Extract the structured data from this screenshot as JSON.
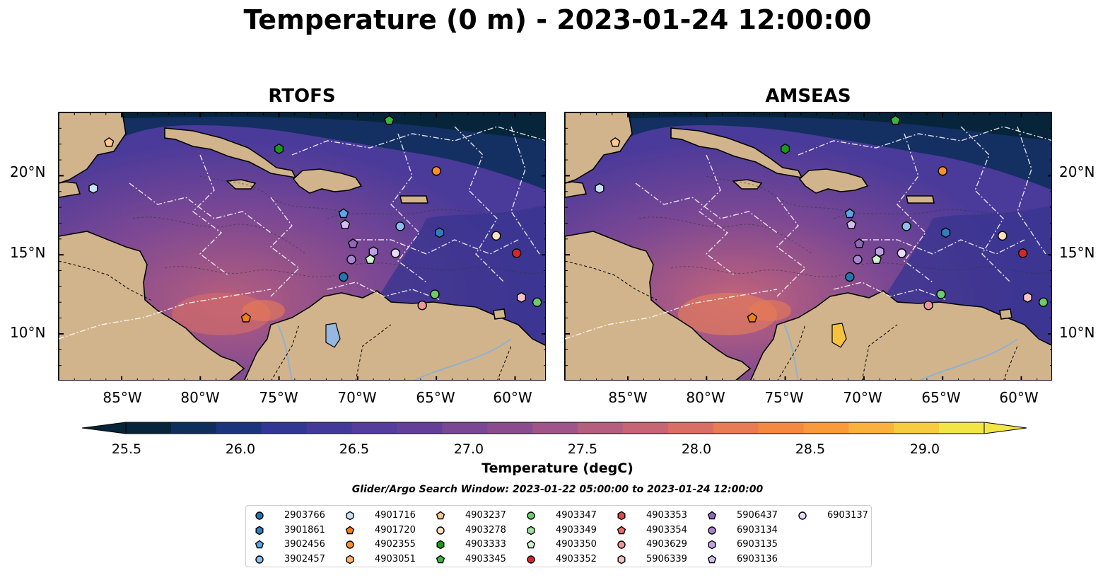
{
  "title": "Temperature (0 m) - 2023-01-24 12:00:00",
  "panels": [
    {
      "title": "RTOFS"
    },
    {
      "title": "AMSEAS"
    }
  ],
  "lat_labels": [
    "20°N",
    "15°N",
    "10°N"
  ],
  "lon_labels": [
    "85°W",
    "80°W",
    "75°W",
    "70°W",
    "65°W",
    "60°W"
  ],
  "colorbar": {
    "title": "Temperature (degC)",
    "ticks": [
      "25.5",
      "26.0",
      "26.5",
      "27.0",
      "27.5",
      "28.0",
      "28.5",
      "29.0"
    ],
    "range": [
      25.5,
      29.25
    ],
    "colors": [
      "#06243a",
      "#0e2f5c",
      "#1b347e",
      "#313795",
      "#433999",
      "#543d9c",
      "#643f9a",
      "#7a4794",
      "#8b4c8e",
      "#a15489",
      "#b55e7d",
      "#c86474",
      "#db6e64",
      "#ea7b54",
      "#f5893f",
      "#fa9a3a",
      "#fbb13b",
      "#f7cc3e",
      "#f2e646"
    ]
  },
  "search_window": "Glider/Argo Search Window: 2023-01-22 05:00:00 to 2023-01-24 12:00:00",
  "legend": [
    {
      "id": "2903766",
      "marker": "circle",
      "color": "#1f77b4"
    },
    {
      "id": "3901861",
      "marker": "hexagon",
      "color": "#2f7fc1"
    },
    {
      "id": "3902456",
      "marker": "pentagon",
      "color": "#5aa8e3"
    },
    {
      "id": "3902457",
      "marker": "circle",
      "color": "#8cc0ec"
    },
    {
      "id": "4901716",
      "marker": "hexagon",
      "color": "#c7e3f7"
    },
    {
      "id": "4901720",
      "marker": "pentagon",
      "color": "#f57f11"
    },
    {
      "id": "4902355",
      "marker": "circle",
      "color": "#ff8f27"
    },
    {
      "id": "4903051",
      "marker": "hexagon",
      "color": "#ffb36b"
    },
    {
      "id": "4903237",
      "marker": "pentagon",
      "color": "#ffc893"
    },
    {
      "id": "4903278",
      "marker": "circle",
      "color": "#ffe1c2"
    },
    {
      "id": "4903333",
      "marker": "hexagon",
      "color": "#1a9a1a"
    },
    {
      "id": "4903345",
      "marker": "pentagon",
      "color": "#3cb53c"
    },
    {
      "id": "4903347",
      "marker": "circle",
      "color": "#6ccc6c"
    },
    {
      "id": "4903349",
      "marker": "hexagon",
      "color": "#9ee09e"
    },
    {
      "id": "4903350",
      "marker": "pentagon",
      "color": "#cdf4cd"
    },
    {
      "id": "4903352",
      "marker": "circle",
      "color": "#d62728"
    },
    {
      "id": "4903353",
      "marker": "hexagon",
      "color": "#e34646"
    },
    {
      "id": "4903354",
      "marker": "pentagon",
      "color": "#ec6b6b"
    },
    {
      "id": "4903629",
      "marker": "circle",
      "color": "#f39595"
    },
    {
      "id": "5906339",
      "marker": "hexagon",
      "color": "#f8c3c3"
    },
    {
      "id": "5906437",
      "marker": "pentagon",
      "color": "#9067bd"
    },
    {
      "id": "6903134",
      "marker": "circle",
      "color": "#a784d1"
    },
    {
      "id": "6903135",
      "marker": "hexagon",
      "color": "#bda1e2"
    },
    {
      "id": "6903136",
      "marker": "pentagon",
      "color": "#d3bef0"
    },
    {
      "id": "6903137",
      "marker": "circle",
      "color": "#e8dcfa"
    }
  ],
  "map_extent": {
    "lon": [
      -89,
      -58
    ],
    "lat": [
      7,
      24
    ]
  },
  "floats_shown": [
    {
      "id": "4903237",
      "lon": -85.8,
      "lat": 22.1
    },
    {
      "id": "4901716",
      "lon": -86.8,
      "lat": 19.2
    },
    {
      "id": "4903333",
      "lon": -75.0,
      "lat": 21.7
    },
    {
      "id": "4903345",
      "lon": -68.0,
      "lat": 23.5
    },
    {
      "id": "4902355",
      "lon": -65.0,
      "lat": 20.3
    },
    {
      "id": "3902456",
      "lon": -70.9,
      "lat": 17.6
    },
    {
      "id": "6903136",
      "lon": -70.8,
      "lat": 16.9
    },
    {
      "id": "3902457",
      "lon": -67.3,
      "lat": 16.8
    },
    {
      "id": "3901861",
      "lon": -64.8,
      "lat": 16.4
    },
    {
      "id": "5906437",
      "lon": -70.3,
      "lat": 15.7
    },
    {
      "id": "6903135",
      "lon": -69.0,
      "lat": 15.2
    },
    {
      "id": "6903137",
      "lon": -67.6,
      "lat": 15.1
    },
    {
      "id": "6903134",
      "lon": -70.4,
      "lat": 14.7
    },
    {
      "id": "4903350",
      "lon": -69.2,
      "lat": 14.7
    },
    {
      "id": "2903766",
      "lon": -70.9,
      "lat": 13.6
    },
    {
      "id": "4903347",
      "lon": -65.1,
      "lat": 12.5
    },
    {
      "id": "4903629",
      "lon": -65.9,
      "lat": 11.8
    },
    {
      "id": "5906339",
      "lon": -59.6,
      "lat": 12.3
    },
    {
      "id": "4903347",
      "lon": -58.6,
      "lat": 12.0
    },
    {
      "id": "4903352",
      "lon": -59.9,
      "lat": 15.1
    },
    {
      "id": "4901720",
      "lon": -77.1,
      "lat": 11.0
    },
    {
      "id": "4903278",
      "lon": -61.2,
      "lat": 16.2
    }
  ]
}
